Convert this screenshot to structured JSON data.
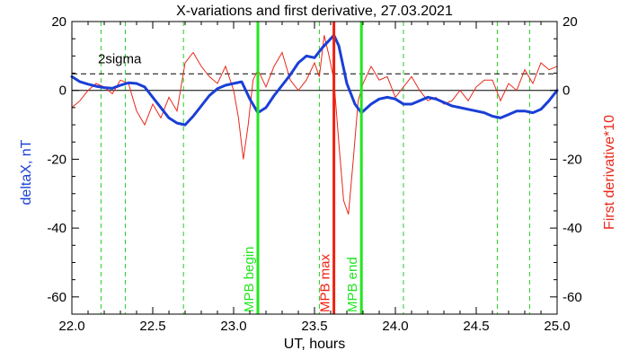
{
  "chart_data": {
    "type": "line",
    "title": "X-variations and first derivative, 27.03.2021",
    "xlabel": "UT, hours",
    "ylabel_left": "deltaX, nT",
    "ylabel_right": "First derivative*10",
    "xlim": [
      22.0,
      25.0
    ],
    "ylim": [
      -65,
      20
    ],
    "x_ticks": [
      "22.0",
      "22.5",
      "23.0",
      "23.5",
      "24.0",
      "24.5",
      "25.0"
    ],
    "y_ticks": [
      "20",
      "0",
      "-20",
      "-40",
      "-60"
    ],
    "sigma_label": "2sigma",
    "sigma_level": 4.8,
    "zero_level": 0,
    "colors": {
      "deltaX": "#1a3fd6",
      "derivative": "#e8281a",
      "mpb_boundary": "#22e61f",
      "mpb_max": "#ee2010",
      "dashed_grid": "#22cc22"
    },
    "dashed_verticals": [
      22.18,
      22.33,
      22.69,
      23.53,
      24.05,
      24.63,
      24.83
    ],
    "markers": [
      {
        "label": "MPB begin",
        "x": 23.15,
        "kind": "begin"
      },
      {
        "label": "MPB max",
        "x": 23.62,
        "kind": "max"
      },
      {
        "label": "MPB end",
        "x": 23.79,
        "kind": "end"
      }
    ],
    "series": [
      {
        "key": "deltaX",
        "axis": "left",
        "x": [
          22.0,
          22.05,
          22.1,
          22.15,
          22.2,
          22.25,
          22.3,
          22.35,
          22.4,
          22.45,
          22.5,
          22.55,
          22.6,
          22.65,
          22.7,
          22.75,
          22.8,
          22.85,
          22.9,
          22.95,
          23.0,
          23.05,
          23.1,
          23.15,
          23.2,
          23.25,
          23.3,
          23.35,
          23.4,
          23.45,
          23.5,
          23.55,
          23.6,
          23.62,
          23.65,
          23.7,
          23.75,
          23.79,
          23.85,
          23.9,
          23.95,
          24.0,
          24.05,
          24.1,
          24.15,
          24.2,
          24.25,
          24.3,
          24.35,
          24.4,
          24.45,
          24.5,
          24.55,
          24.6,
          24.65,
          24.7,
          24.75,
          24.8,
          24.85,
          24.9,
          24.95,
          25.0
        ],
        "y": [
          4,
          2.5,
          1.8,
          1.2,
          0.8,
          0.6,
          1.5,
          2.2,
          2.0,
          1.0,
          -2.0,
          -5.0,
          -8.0,
          -9.5,
          -10.0,
          -7.5,
          -4.5,
          -1.5,
          0.5,
          1.5,
          2.0,
          2.5,
          -2.5,
          -6.5,
          -5.0,
          -1.5,
          1.5,
          4.5,
          8.0,
          10.0,
          9.5,
          12.5,
          15.0,
          16.0,
          13.0,
          2.0,
          -4.0,
          -6.5,
          -4.0,
          -2.5,
          -2.0,
          -2.5,
          -4.0,
          -4.0,
          -3.0,
          -2.0,
          -2.5,
          -3.5,
          -4.5,
          -5.0,
          -5.5,
          -6.0,
          -6.5,
          -7.5,
          -8.0,
          -7.0,
          -6.0,
          -6.0,
          -6.5,
          -5.5,
          -3.0,
          0.0
        ]
      },
      {
        "key": "derivative",
        "axis": "right",
        "x": [
          22.0,
          22.05,
          22.1,
          22.15,
          22.2,
          22.25,
          22.3,
          22.35,
          22.4,
          22.45,
          22.5,
          22.55,
          22.6,
          22.65,
          22.7,
          22.75,
          22.8,
          22.85,
          22.9,
          22.95,
          23.0,
          23.03,
          23.06,
          23.09,
          23.12,
          23.15,
          23.2,
          23.25,
          23.3,
          23.35,
          23.4,
          23.45,
          23.5,
          23.53,
          23.56,
          23.59,
          23.62,
          23.65,
          23.68,
          23.71,
          23.74,
          23.77,
          23.8,
          23.85,
          23.9,
          23.95,
          24.0,
          24.05,
          24.1,
          24.15,
          24.2,
          24.25,
          24.3,
          24.35,
          24.4,
          24.45,
          24.5,
          24.55,
          24.6,
          24.65,
          24.7,
          24.75,
          24.8,
          24.85,
          24.9,
          24.95,
          25.0
        ],
        "y": [
          -5,
          -3,
          0,
          2,
          1,
          -1,
          3,
          2,
          -6,
          -10,
          -4,
          -8,
          -2,
          -6,
          8,
          11,
          7,
          4,
          2,
          7,
          0,
          -8,
          -20,
          -10,
          3,
          6,
          1,
          7,
          11,
          3,
          0,
          3,
          8,
          4,
          16,
          10,
          3,
          -15,
          -32,
          -36,
          -20,
          -3,
          2,
          7,
          3,
          4,
          -2,
          1,
          4,
          0,
          -3,
          -2,
          -4,
          -3,
          0,
          -3,
          1,
          3,
          3,
          -3,
          2,
          0,
          6,
          2,
          8,
          6,
          7
        ]
      }
    ]
  }
}
